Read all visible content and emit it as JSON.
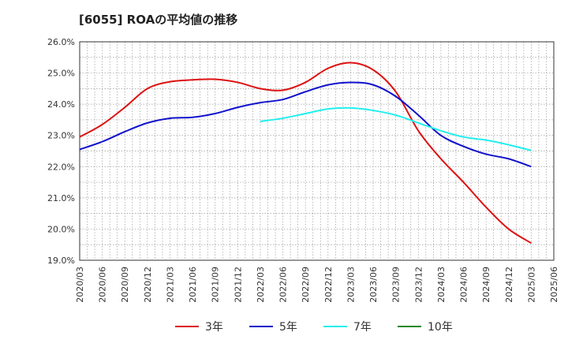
{
  "title": "[6055]  ROAの平均値の推移",
  "chart_data": {
    "type": "line",
    "title": "[6055]  ROAの平均値の推移",
    "xlabel": "",
    "ylabel": "",
    "y_tick_labels": [
      "19.0%",
      "20.0%",
      "21.0%",
      "22.0%",
      "23.0%",
      "24.0%",
      "25.0%",
      "26.0%"
    ],
    "ylim": [
      19.0,
      26.0
    ],
    "x_tick_labels": [
      "2020/03",
      "2020/06",
      "2020/09",
      "2020/12",
      "2021/03",
      "2021/06",
      "2021/09",
      "2021/12",
      "2022/03",
      "2022/06",
      "2022/09",
      "2022/12",
      "2023/03",
      "2023/06",
      "2023/09",
      "2023/12",
      "2024/03",
      "2024/06",
      "2024/09",
      "2024/12",
      "2025/03",
      "2025/06"
    ],
    "grid": true,
    "legend_position": "bottom",
    "series": [
      {
        "name": "3年",
        "color": "#dd1111",
        "x": [
          "2020/03",
          "2020/06",
          "2020/09",
          "2020/12",
          "2021/03",
          "2021/06",
          "2021/09",
          "2021/12",
          "2022/03",
          "2022/06",
          "2022/09",
          "2022/12",
          "2023/03",
          "2023/06",
          "2023/09",
          "2023/12",
          "2024/03",
          "2024/06",
          "2024/09",
          "2024/12",
          "2025/03"
        ],
        "values": [
          22.95,
          23.35,
          23.9,
          24.5,
          24.72,
          24.78,
          24.8,
          24.7,
          24.5,
          24.45,
          24.7,
          25.15,
          25.33,
          25.1,
          24.4,
          23.15,
          22.25,
          21.5,
          20.7,
          20.0,
          19.55
        ]
      },
      {
        "name": "5年",
        "color": "#1111cc",
        "x": [
          "2020/03",
          "2020/06",
          "2020/09",
          "2020/12",
          "2021/03",
          "2021/06",
          "2021/09",
          "2021/12",
          "2022/03",
          "2022/06",
          "2022/09",
          "2022/12",
          "2023/03",
          "2023/06",
          "2023/09",
          "2023/12",
          "2024/03",
          "2024/06",
          "2024/09",
          "2024/12",
          "2025/03"
        ],
        "values": [
          22.55,
          22.8,
          23.12,
          23.4,
          23.55,
          23.58,
          23.7,
          23.9,
          24.05,
          24.15,
          24.4,
          24.62,
          24.7,
          24.62,
          24.25,
          23.65,
          23.0,
          22.65,
          22.4,
          22.25,
          22.0
        ]
      },
      {
        "name": "7年",
        "color": "#22eeee",
        "x": [
          "2022/03",
          "2022/06",
          "2022/09",
          "2022/12",
          "2023/03",
          "2023/06",
          "2023/09",
          "2023/12",
          "2024/03",
          "2024/06",
          "2024/09",
          "2024/12",
          "2025/03"
        ],
        "values": [
          23.45,
          23.55,
          23.7,
          23.85,
          23.88,
          23.8,
          23.65,
          23.4,
          23.15,
          22.95,
          22.85,
          22.7,
          22.52
        ]
      },
      {
        "name": "10年",
        "color": "#228822",
        "x": [],
        "values": []
      }
    ]
  }
}
